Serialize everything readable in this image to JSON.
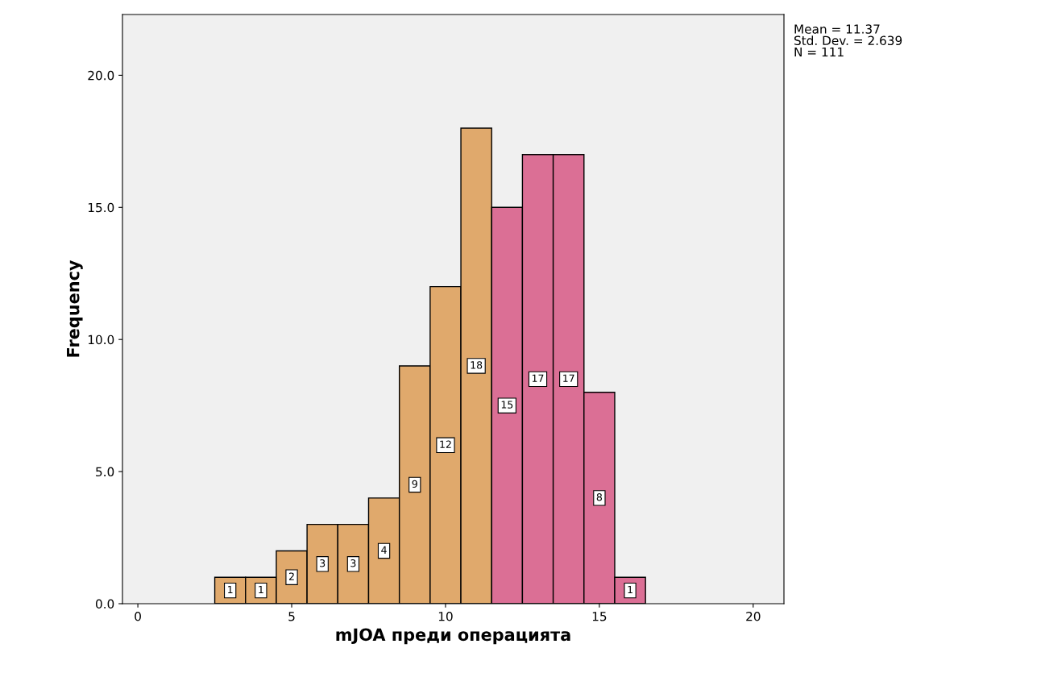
{
  "chart_data": {
    "type": "histogram",
    "xlabel": "mJOA преди операцията",
    "ylabel": "Frequency",
    "bins": [
      2.5,
      3.5,
      4.5,
      5.5,
      6.5,
      7.5,
      8.5,
      9.5,
      10.5,
      11.5,
      12.5,
      13.5,
      14.5,
      15.5,
      16.5
    ],
    "values": [
      1,
      1,
      2,
      3,
      3,
      4,
      9,
      12,
      18,
      15,
      17,
      17,
      8,
      1
    ],
    "colors": [
      "#e0a96c",
      "#e0a96c",
      "#e0a96c",
      "#e0a96c",
      "#e0a96c",
      "#e0a96c",
      "#e0a96c",
      "#e0a96c",
      "#e0a96c",
      "#db6f95",
      "#db6f95",
      "#db6f95",
      "#db6f95",
      "#db6f95"
    ],
    "data_labels": true,
    "xlim": [
      -0.5,
      21
    ],
    "xticks": [
      0,
      5,
      10,
      15,
      20
    ],
    "ylim": [
      0,
      22.3
    ],
    "yticks": [
      {
        "value": 0,
        "label": "0.0"
      },
      {
        "value": 5,
        "label": "5.0"
      },
      {
        "value": 10,
        "label": "10.0"
      },
      {
        "value": 15,
        "label": "15.0"
      },
      {
        "value": 20,
        "label": "20.0"
      }
    ],
    "annotations": [
      "Mean = 11.37\nStd. Dev. = 2.639\nN = 111"
    ],
    "grid": false
  }
}
